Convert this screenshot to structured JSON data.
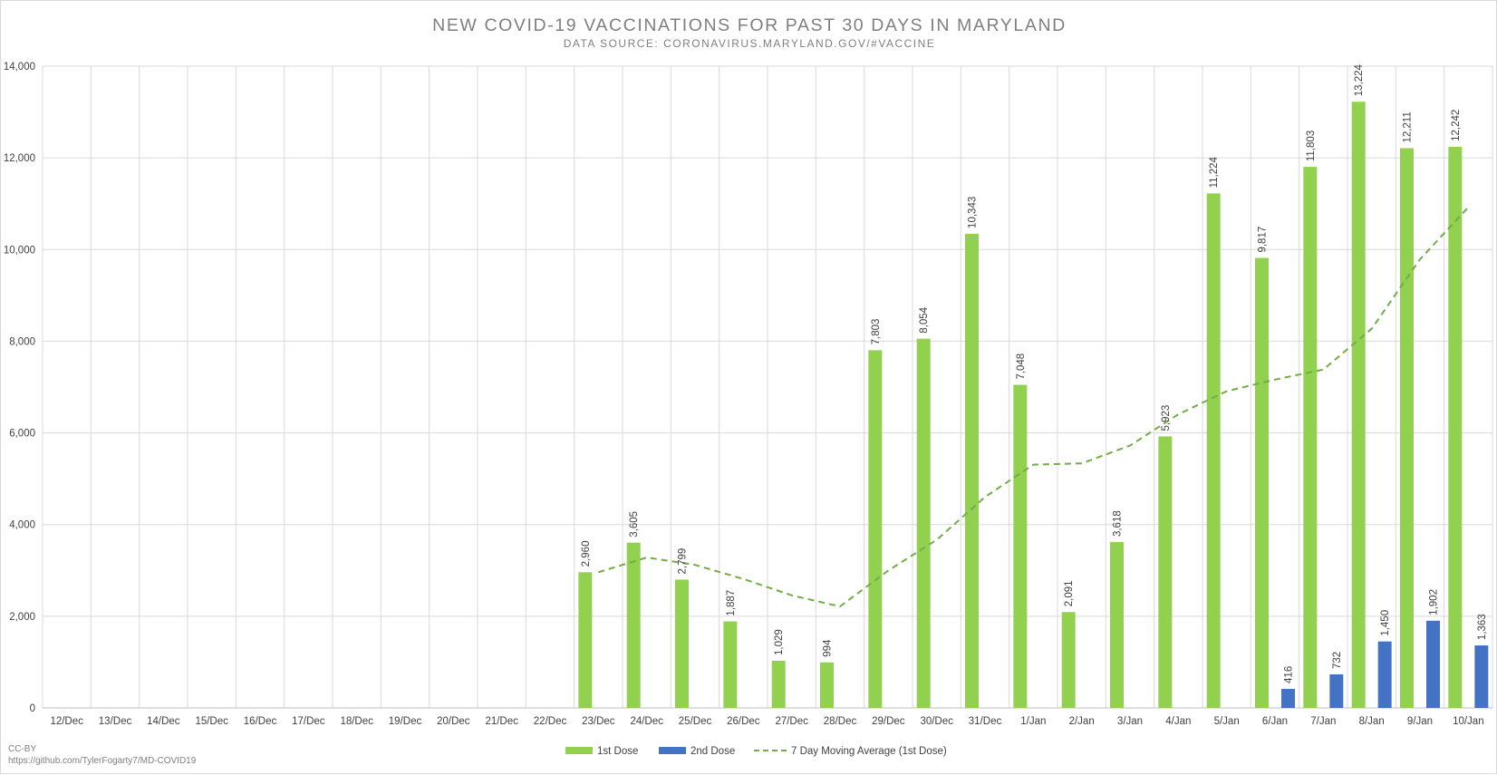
{
  "chart_data": {
    "type": "bar",
    "title": "NEW COVID-19 VACCINATIONS FOR PAST 30 DAYS IN MARYLAND",
    "subtitle": "DATA SOURCE: CORONAVIRUS.MARYLAND.GOV/#VACCINE",
    "categories": [
      "12/Dec",
      "13/Dec",
      "14/Dec",
      "15/Dec",
      "16/Dec",
      "17/Dec",
      "18/Dec",
      "19/Dec",
      "20/Dec",
      "21/Dec",
      "22/Dec",
      "23/Dec",
      "24/Dec",
      "25/Dec",
      "26/Dec",
      "27/Dec",
      "28/Dec",
      "29/Dec",
      "30/Dec",
      "31/Dec",
      "1/Jan",
      "2/Jan",
      "3/Jan",
      "4/Jan",
      "5/Jan",
      "6/Jan",
      "7/Jan",
      "8/Jan",
      "9/Jan",
      "10/Jan"
    ],
    "ylim": [
      0,
      14000
    ],
    "yticks": [
      0,
      2000,
      4000,
      6000,
      8000,
      10000,
      12000,
      14000
    ],
    "ytick_labels": [
      "0",
      "2,000",
      "4,000",
      "6,000",
      "8,000",
      "10,000",
      "12,000",
      "14,000"
    ],
    "grid": true,
    "legend_position": "bottom",
    "series": [
      {
        "name": "1st Dose",
        "kind": "bar",
        "color": "#92d050",
        "values": [
          null,
          null,
          null,
          null,
          null,
          null,
          null,
          null,
          null,
          null,
          null,
          2960,
          3605,
          2799,
          1887,
          1029,
          994,
          7803,
          8054,
          10343,
          7048,
          2091,
          3618,
          5923,
          11224,
          9817,
          11803,
          13224,
          12211,
          12242
        ],
        "labels": [
          "",
          "",
          "",
          "",
          "",
          "",
          "",
          "",
          "",
          "",
          "",
          "2,960",
          "3,605",
          "2,799",
          "1,887",
          "1,029",
          "994",
          "7,803",
          "8,054",
          "10,343",
          "7,048",
          "2,091",
          "3,618",
          "5,923",
          "11,224",
          "9,817",
          "11,803",
          "13,224",
          "12,211",
          "12,242"
        ]
      },
      {
        "name": "2nd Dose",
        "kind": "bar",
        "color": "#4472c4",
        "values": [
          null,
          null,
          null,
          null,
          null,
          null,
          null,
          null,
          null,
          null,
          null,
          null,
          null,
          null,
          null,
          null,
          null,
          null,
          null,
          null,
          null,
          null,
          null,
          null,
          null,
          416,
          732,
          1450,
          1902,
          1363
        ],
        "labels": [
          "",
          "",
          "",
          "",
          "",
          "",
          "",
          "",
          "",
          "",
          "",
          "",
          "",
          "",
          "",
          "",
          "",
          "",
          "",
          "",
          "",
          "",
          "",
          "",
          "",
          "416",
          "732",
          "1,450",
          "1,902",
          "1,363"
        ]
      },
      {
        "name": "7 Day Moving Average (1st Dose)",
        "kind": "line",
        "style": "dashed",
        "color": "#70ad47",
        "values": [
          null,
          null,
          null,
          null,
          null,
          null,
          null,
          null,
          null,
          null,
          null,
          2960,
          3283,
          3121,
          2813,
          2456,
          2212,
          2997,
          3667,
          4601,
          5307,
          5336,
          5722,
          6404,
          6910,
          7163,
          7381,
          8271,
          9786,
          10922
        ]
      }
    ],
    "credits": [
      "CC-BY",
      "https://github.com/TylerFogarty7/MD-COVID19"
    ]
  }
}
